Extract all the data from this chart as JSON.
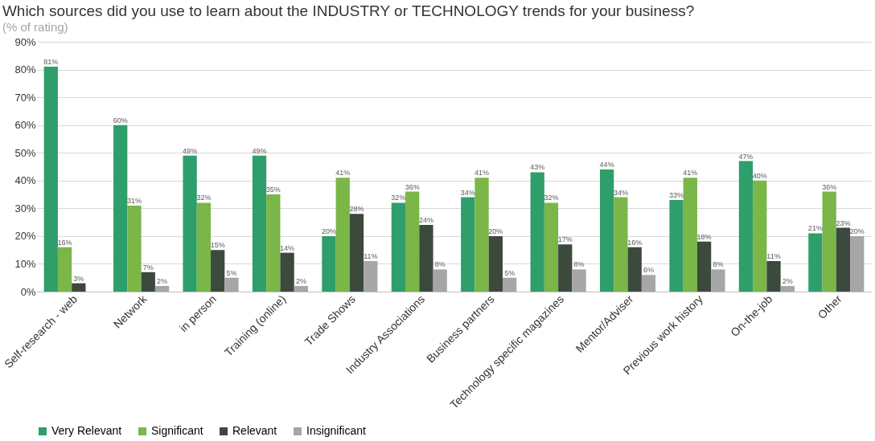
{
  "chart_data": {
    "type": "bar",
    "title": "Which sources did you use to learn about the INDUSTRY or TECHNOLOGY trends for your business?",
    "subtitle": "(% of rating)",
    "categories": [
      "Self-research - web",
      "Network",
      "in person",
      "Training (online)",
      "Trade Shows",
      "Industry Associations",
      "Business partners",
      "Technology specific magazines",
      "Mentor/Adviser",
      "Previous work history",
      "On-the-job",
      "Other"
    ],
    "series": [
      {
        "name": "Very Relevant",
        "color": "#2e9e6b",
        "values": [
          81,
          60,
          49,
          49,
          20,
          32,
          34,
          43,
          44,
          33,
          47,
          21
        ],
        "value_labels": [
          "81%",
          "60%",
          "49%",
          "49%",
          "20%",
          "32%",
          "34%",
          "43%",
          "44%",
          "33%",
          "47%",
          "21%"
        ]
      },
      {
        "name": "Significant",
        "color": "#7ab648",
        "values": [
          16,
          31,
          32,
          35,
          41,
          36,
          41,
          32,
          34,
          41,
          40,
          36
        ],
        "value_labels": [
          "16%",
          "31%",
          "32%",
          "35%",
          "41%",
          "36%",
          "41%",
          "32%",
          "34%",
          "41%",
          "40%",
          "36%"
        ]
      },
      {
        "name": "Relevant",
        "color": "#3b4a3d",
        "values": [
          3,
          7,
          15,
          14,
          28,
          24,
          20,
          17,
          16,
          18,
          11,
          23
        ],
        "value_labels": [
          "3%",
          "7%",
          "15%",
          "14%",
          "28%",
          "24%",
          "20%",
          "17%",
          "16%",
          "18%",
          "11%",
          "23%"
        ]
      },
      {
        "name": "Insignificant",
        "color": "#a6a6a6",
        "values": [
          null,
          2,
          5,
          2,
          11,
          8,
          5,
          8,
          6,
          8,
          2,
          20
        ],
        "value_labels": [
          null,
          "2%",
          "5%",
          "2%",
          "11%",
          "8%",
          "5%",
          "8%",
          "6%",
          "8%",
          "2%",
          "20%"
        ]
      }
    ],
    "ylim": [
      0,
      90
    ],
    "yticks": [
      {
        "value": 0,
        "label": "0%"
      },
      {
        "value": 10,
        "label": "10%"
      },
      {
        "value": 20,
        "label": "20%"
      },
      {
        "value": 30,
        "label": "30%"
      },
      {
        "value": 40,
        "label": "40%"
      },
      {
        "value": 50,
        "label": "50%"
      },
      {
        "value": 60,
        "label": "60%"
      },
      {
        "value": 70,
        "label": "70%"
      },
      {
        "value": 80,
        "label": "80%"
      },
      {
        "value": 90,
        "label": "90%"
      }
    ],
    "grid": "y",
    "legend": "bottom"
  }
}
